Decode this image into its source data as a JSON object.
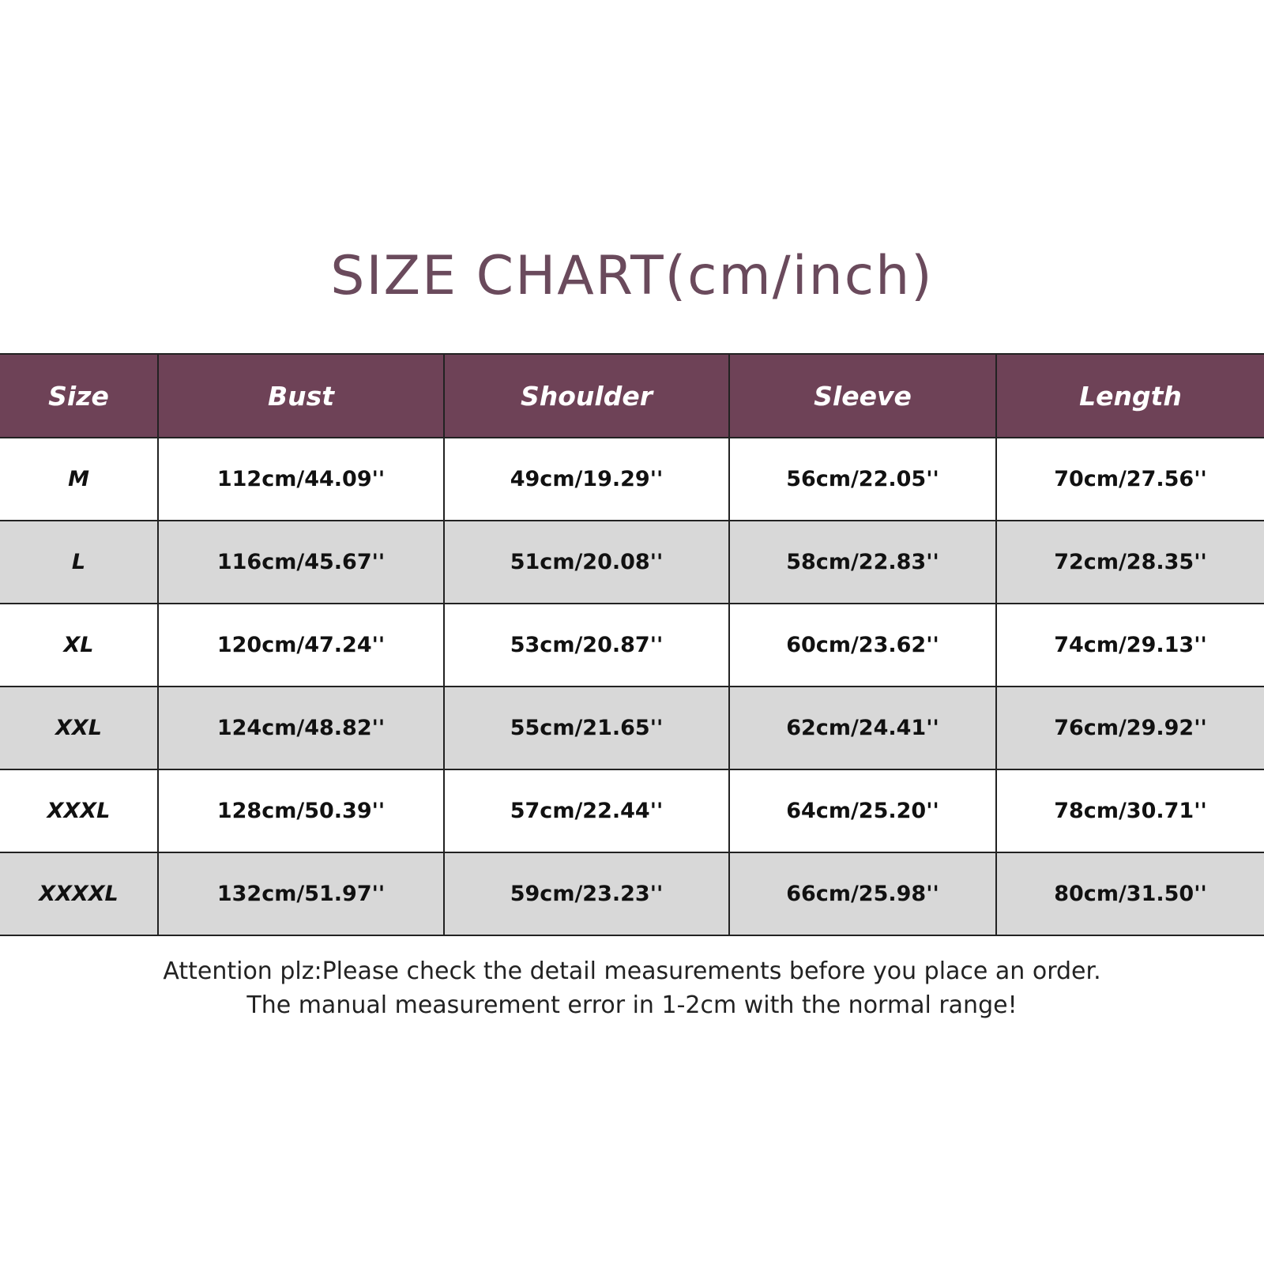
{
  "title": "SIZE CHART(cm/inch)",
  "table": {
    "headers": [
      "Size",
      "Bust",
      "Shoulder",
      "Sleeve",
      "Length"
    ],
    "rows": [
      [
        "M",
        "112cm/44.09''",
        "49cm/19.29''",
        "56cm/22.05''",
        "70cm/27.56''"
      ],
      [
        "L",
        "116cm/45.67''",
        "51cm/20.08''",
        "58cm/22.83''",
        "72cm/28.35''"
      ],
      [
        "XL",
        "120cm/47.24''",
        "53cm/20.87''",
        "60cm/23.62''",
        "74cm/29.13''"
      ],
      [
        "XXL",
        "124cm/48.82''",
        "55cm/21.65''",
        "62cm/24.41''",
        "76cm/29.92''"
      ],
      [
        "XXXL",
        "128cm/50.39''",
        "57cm/22.44''",
        "64cm/25.20''",
        "78cm/30.71''"
      ],
      [
        "XXXXL",
        "132cm/51.97''",
        "59cm/23.23''",
        "66cm/25.98''",
        "80cm/31.50''"
      ]
    ]
  },
  "notes": [
    "Attention plz:Please check the detail measurements before you place an order.",
    "The manual measurement error in 1-2cm with the normal range!"
  ],
  "colors": {
    "header_bg": "#6e4257",
    "title": "#6a4a5c",
    "alt_row": "#d8d8d8"
  }
}
